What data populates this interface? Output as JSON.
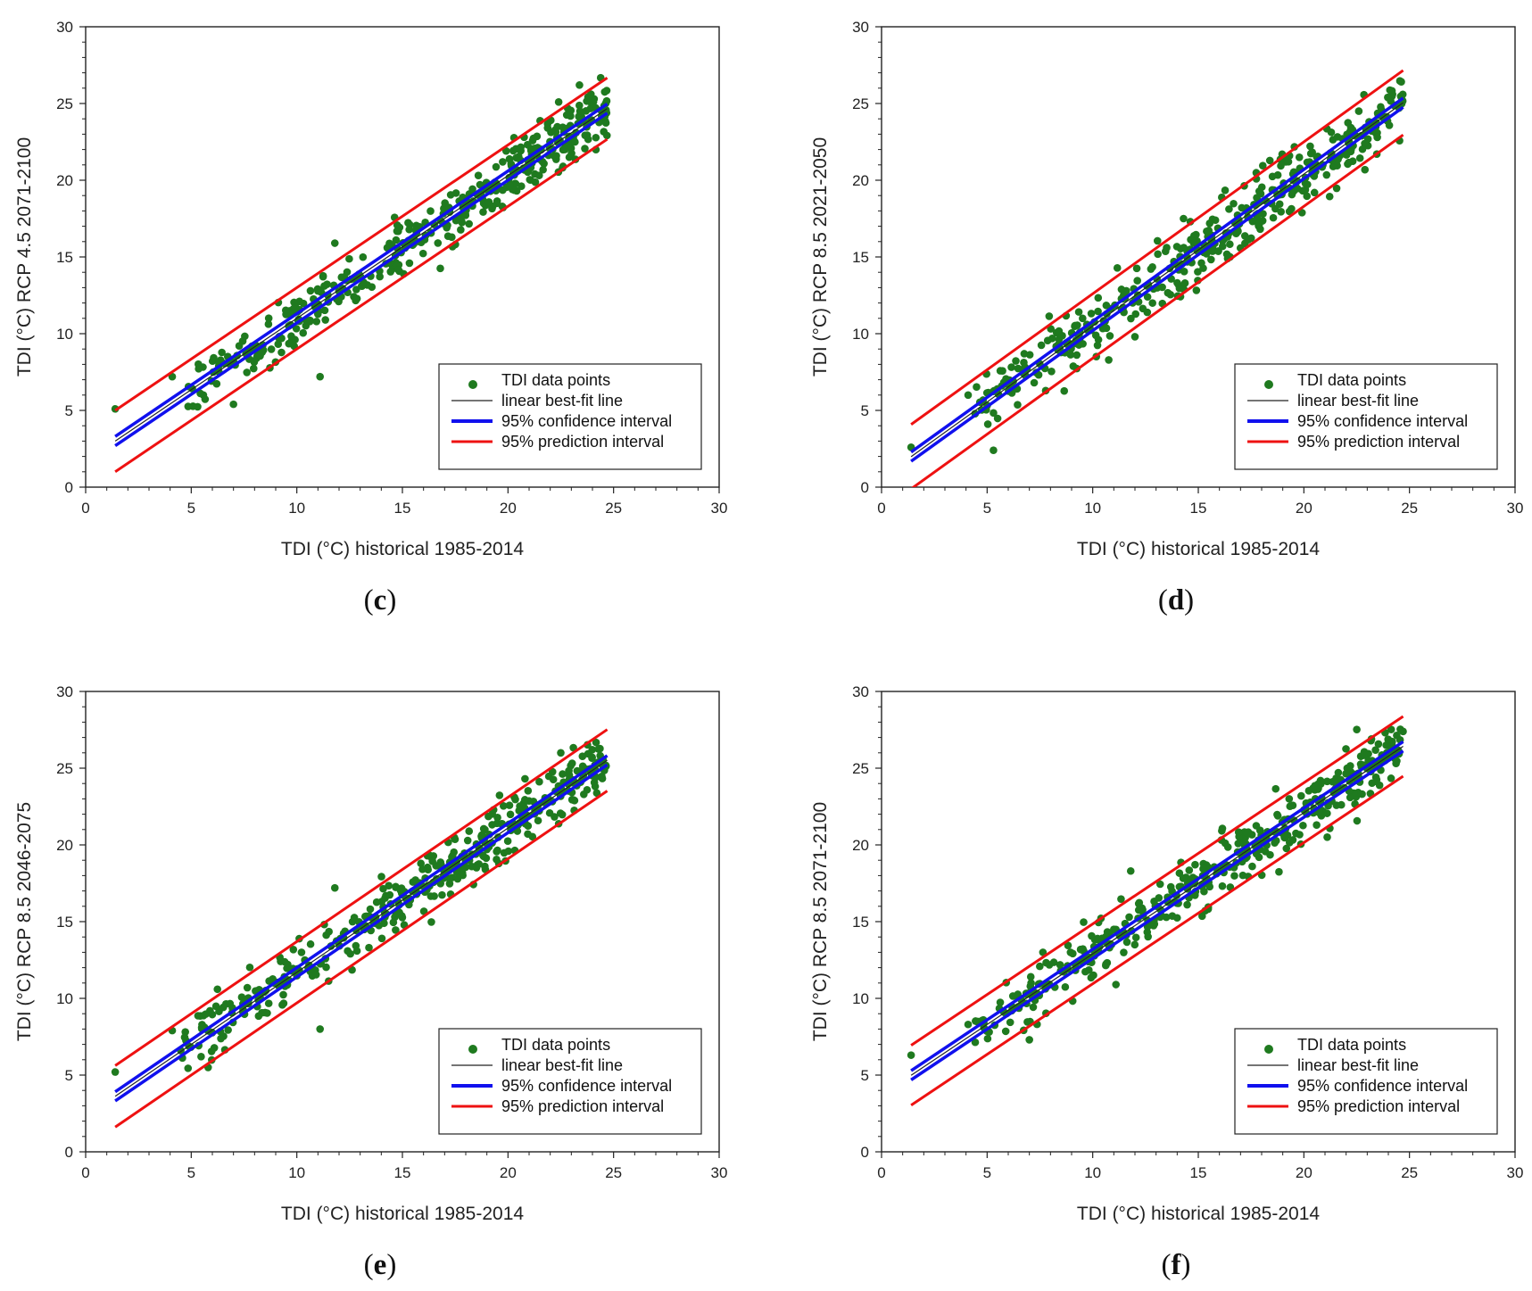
{
  "colors": {
    "points": "#1f7a1f",
    "fit_line": "#222222",
    "confidence": "#1010ee",
    "prediction": "#ee1111"
  },
  "chart_data": [
    {
      "id": "c",
      "type": "scatter",
      "panel_label": "c",
      "xlabel": "TDI (°C) historical 1985-2014",
      "ylabel": "TDI (°C) RCP 4.5 2071-2100",
      "xlim": [
        0,
        30
      ],
      "ylim": [
        0,
        30
      ],
      "xticks": [
        0,
        5,
        10,
        15,
        20,
        25,
        30
      ],
      "yticks": [
        0,
        5,
        10,
        15,
        20,
        25,
        30
      ],
      "x_range": [
        1.4,
        24.7
      ],
      "fit": {
        "slope": 0.93,
        "intercept": 1.7
      },
      "confidence_halfwidth": 0.3,
      "prediction_halfwidth": 2.0,
      "scatter_spread": 0.95,
      "seed": 3,
      "outliers": [
        [
          1.4,
          5.1
        ],
        [
          4.1,
          7.2
        ],
        [
          7.0,
          5.4
        ],
        [
          11.1,
          7.2
        ],
        [
          11.8,
          15.9
        ],
        [
          22.4,
          25.1
        ]
      ],
      "legend": {
        "position": "bottom-right",
        "entries": [
          "TDI data points",
          "linear best-fit line",
          "95% confidence interval",
          "95% prediction interval"
        ]
      }
    },
    {
      "id": "d",
      "type": "scatter",
      "panel_label": "d",
      "xlabel": "TDI (°C) historical 1985-2014",
      "ylabel": "TDI (°C) RCP 8.5 2021-2050",
      "xlim": [
        0,
        30
      ],
      "ylim": [
        0,
        30
      ],
      "xticks": [
        0,
        5,
        10,
        15,
        20,
        25,
        30
      ],
      "yticks": [
        0,
        5,
        10,
        15,
        20,
        25,
        30
      ],
      "x_range": [
        1.4,
        24.7
      ],
      "fit": {
        "slope": 0.99,
        "intercept": 0.6
      },
      "confidence_halfwidth": 0.3,
      "prediction_halfwidth": 2.1,
      "scatter_spread": 1.0,
      "seed": 7,
      "outliers": [
        [
          1.4,
          2.6
        ],
        [
          4.1,
          6.0
        ],
        [
          5.3,
          2.4
        ],
        [
          14.3,
          17.5
        ],
        [
          12.0,
          9.8
        ],
        [
          22.6,
          24.5
        ]
      ],
      "legend": {
        "position": "bottom-right",
        "entries": [
          "TDI data points",
          "linear best-fit line",
          "95% confidence interval",
          "95% prediction interval"
        ]
      }
    },
    {
      "id": "e",
      "type": "scatter",
      "panel_label": "e",
      "xlabel": "TDI (°C) historical 1985-2014",
      "ylabel": "TDI (°C) RCP 8.5 2046-2075",
      "xlim": [
        0,
        30
      ],
      "ylim": [
        0,
        30
      ],
      "xticks": [
        0,
        5,
        10,
        15,
        20,
        25,
        30
      ],
      "yticks": [
        0,
        5,
        10,
        15,
        20,
        25,
        30
      ],
      "x_range": [
        1.4,
        24.7
      ],
      "fit": {
        "slope": 0.94,
        "intercept": 2.3
      },
      "confidence_halfwidth": 0.3,
      "prediction_halfwidth": 2.0,
      "scatter_spread": 0.95,
      "seed": 11,
      "outliers": [
        [
          1.4,
          5.2
        ],
        [
          4.1,
          7.9
        ],
        [
          5.8,
          5.5
        ],
        [
          11.1,
          8.0
        ],
        [
          11.8,
          17.2
        ],
        [
          22.5,
          26.0
        ]
      ],
      "legend": {
        "position": "bottom-right",
        "entries": [
          "TDI data points",
          "linear best-fit line",
          "95% confidence interval",
          "95% prediction interval"
        ]
      }
    },
    {
      "id": "f",
      "type": "scatter",
      "panel_label": "f",
      "xlabel": "TDI (°C) historical 1985-2014",
      "ylabel": "TDI (°C) RCP 8.5 2071-2100",
      "xlim": [
        0,
        30
      ],
      "ylim": [
        0,
        30
      ],
      "xticks": [
        0,
        5,
        10,
        15,
        20,
        25,
        30
      ],
      "yticks": [
        0,
        5,
        10,
        15,
        20,
        25,
        30
      ],
      "x_range": [
        1.4,
        24.7
      ],
      "fit": {
        "slope": 0.92,
        "intercept": 3.7
      },
      "confidence_halfwidth": 0.3,
      "prediction_halfwidth": 1.95,
      "scatter_spread": 0.95,
      "seed": 19,
      "outliers": [
        [
          1.4,
          6.3
        ],
        [
          4.1,
          8.3
        ],
        [
          7.0,
          7.3
        ],
        [
          11.1,
          10.9
        ],
        [
          11.8,
          18.3
        ],
        [
          23.2,
          26.9
        ]
      ],
      "legend": {
        "position": "bottom-right",
        "entries": [
          "TDI data points",
          "linear best-fit line",
          "95% confidence interval",
          "95% prediction interval"
        ]
      }
    }
  ]
}
